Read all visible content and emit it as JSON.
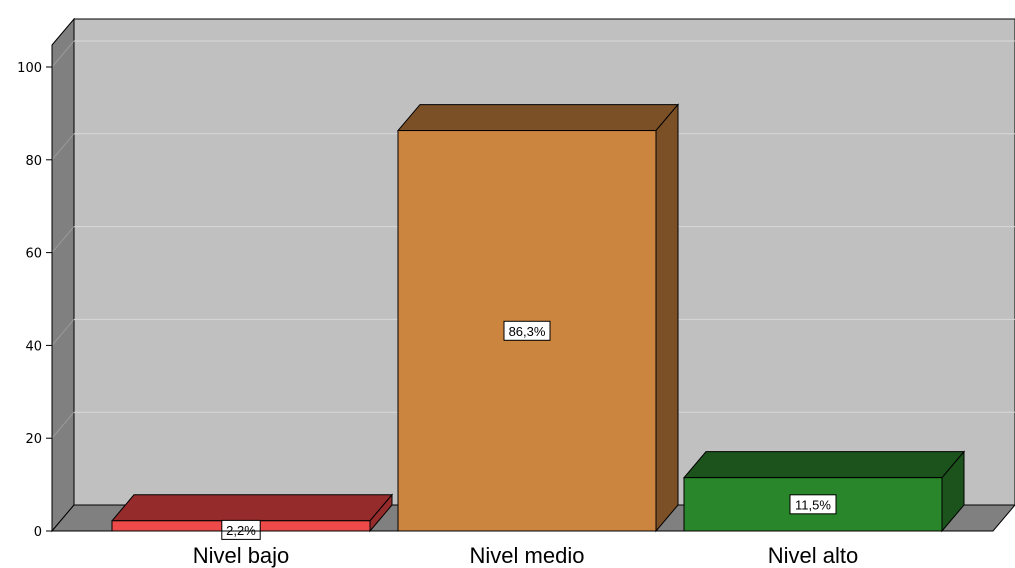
{
  "chart_data": {
    "type": "bar",
    "categories": [
      "Nivel bajo",
      "Nivel medio",
      "Nivel alto"
    ],
    "values": [
      2.2,
      86.3,
      11.5
    ],
    "data_labels": [
      "2,2%",
      "86,3%",
      "11,5%"
    ],
    "ylim": [
      0,
      100
    ],
    "y_ticks": [
      0,
      20,
      40,
      60,
      80,
      100
    ],
    "y_tick_labels": [
      "0",
      "20",
      "40",
      "60",
      "80",
      "100"
    ],
    "grid": true,
    "three_d": true,
    "colors": {
      "plot_back": "#c0c0c0",
      "left_wall": "#808080",
      "floor": "#808080",
      "gridline": "#d8d8d8"
    },
    "bar_colors": [
      {
        "front": "#ef4a4a",
        "top": "#952b2b",
        "side": "#952b2b"
      },
      {
        "front": "#cc853f",
        "top": "#7b5027",
        "side": "#7b5027"
      },
      {
        "front": "#2a862a",
        "top": "#1c521c",
        "side": "#1c521c"
      }
    ]
  }
}
